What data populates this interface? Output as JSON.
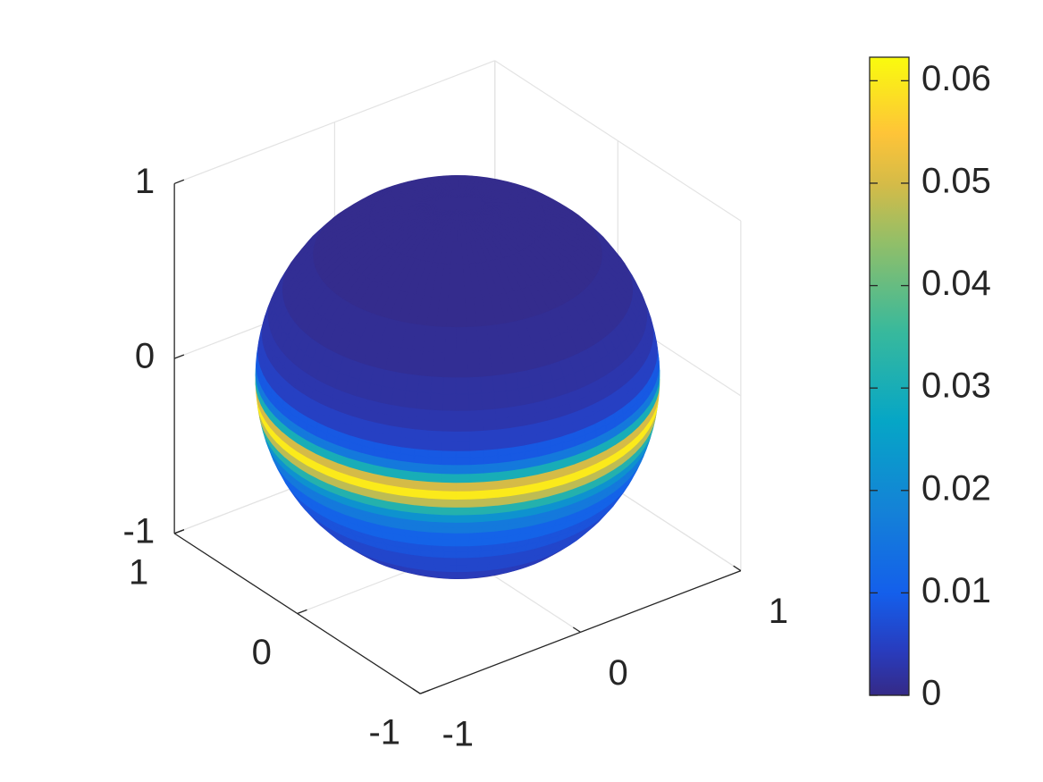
{
  "chart_data": {
    "type": "sphere",
    "colormap": "parula",
    "view": {
      "azimuth": -37.5,
      "elevation": 30
    },
    "xlim": [
      -1,
      1
    ],
    "ylim": [
      -1,
      1
    ],
    "zlim": [
      -1,
      1
    ],
    "xticks": [
      -1,
      0,
      1
    ],
    "yticks": [
      -1,
      0,
      1
    ],
    "zticks": [
      -1,
      0,
      1
    ],
    "grid": true,
    "field": {
      "z": [
        -1,
        -0.8,
        -0.6,
        -0.5,
        -0.4,
        -0.3,
        -0.25,
        -0.2,
        -0.15,
        -0.1,
        -0.05,
        0,
        0.05,
        0.1,
        0.2,
        0.3,
        0.4,
        0.6,
        0.8,
        1
      ],
      "values": [
        0.002,
        0.004,
        0.006,
        0.008,
        0.011,
        0.016,
        0.022,
        0.032,
        0.048,
        0.06,
        0.05,
        0.03,
        0.016,
        0.009,
        0.005,
        0.003,
        0.002,
        0.001,
        0.0005,
        0.0005
      ]
    },
    "colorbar": {
      "clim": [
        0,
        0.0623
      ],
      "ticks": [
        0,
        0.01,
        0.02,
        0.03,
        0.04,
        0.05,
        0.06
      ]
    }
  }
}
